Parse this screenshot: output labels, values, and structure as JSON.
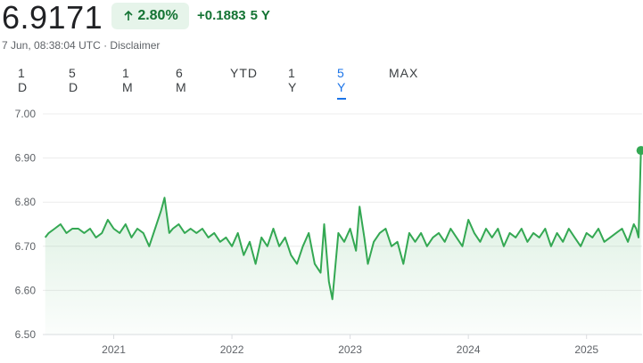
{
  "header": {
    "price": "6.9171",
    "change_pct": "2.80%",
    "change_abs": "+0.1883",
    "change_period": "5 Y",
    "timestamp": "7 Jun, 08:38:04 UTC",
    "separator": "·",
    "disclaimer": "Disclaimer"
  },
  "ranges": [
    {
      "label": "1 D",
      "active": false
    },
    {
      "label": "5 D",
      "active": false
    },
    {
      "label": "1 M",
      "active": false
    },
    {
      "label": "6 M",
      "active": false
    },
    {
      "label": "YTD",
      "active": false
    },
    {
      "label": "1 Y",
      "active": false
    },
    {
      "label": "5 Y",
      "active": true
    },
    {
      "label": "MAX",
      "active": false
    }
  ],
  "colors": {
    "positive": "#137333",
    "line": "#34a853",
    "active_tab": "#1a73e8"
  },
  "icons": {
    "change_arrow": "arrow-up-icon"
  },
  "chart_data": {
    "type": "area",
    "ylim": [
      6.5,
      7.0
    ],
    "yticks": [
      "7.00",
      "6.90",
      "6.80",
      "6.70",
      "6.60",
      "6.50"
    ],
    "ytick_values": [
      7.0,
      6.9,
      6.8,
      6.7,
      6.6,
      6.5
    ],
    "xtick_labels": [
      "2021",
      "2022",
      "2023",
      "2024",
      "2025"
    ],
    "xtick_values": [
      2021.0,
      2022.0,
      2023.0,
      2024.0,
      2025.0
    ],
    "xlim": [
      2020.4,
      2025.47
    ],
    "grid": true,
    "series": [
      {
        "x": [
          2020.42,
          2020.45,
          2020.5,
          2020.55,
          2020.6,
          2020.65,
          2020.7,
          2020.75,
          2020.8,
          2020.85,
          2020.9,
          2020.95,
          2021.0,
          2021.05,
          2021.1,
          2021.15,
          2021.2,
          2021.25,
          2021.3,
          2021.35,
          2021.4,
          2021.43,
          2021.47,
          2021.5,
          2021.55,
          2021.6,
          2021.65,
          2021.7,
          2021.75,
          2021.8,
          2021.85,
          2021.9,
          2021.95,
          2022.0,
          2022.05,
          2022.1,
          2022.15,
          2022.2,
          2022.25,
          2022.3,
          2022.35,
          2022.4,
          2022.45,
          2022.5,
          2022.55,
          2022.6,
          2022.65,
          2022.7,
          2022.75,
          2022.78,
          2022.82,
          2022.85,
          2022.9,
          2022.95,
          2023.0,
          2023.05,
          2023.08,
          2023.12,
          2023.15,
          2023.2,
          2023.25,
          2023.3,
          2023.35,
          2023.4,
          2023.45,
          2023.5,
          2023.55,
          2023.6,
          2023.65,
          2023.7,
          2023.75,
          2023.8,
          2023.85,
          2023.9,
          2023.95,
          2024.0,
          2024.05,
          2024.1,
          2024.15,
          2024.2,
          2024.25,
          2024.3,
          2024.35,
          2024.4,
          2024.45,
          2024.5,
          2024.55,
          2024.6,
          2024.65,
          2024.7,
          2024.75,
          2024.8,
          2024.85,
          2024.9,
          2024.95,
          2025.0,
          2025.05,
          2025.1,
          2025.15,
          2025.2,
          2025.25,
          2025.3,
          2025.35,
          2025.4,
          2025.42,
          2025.44,
          2025.46
        ],
        "values": [
          6.72,
          6.73,
          6.74,
          6.75,
          6.73,
          6.74,
          6.74,
          6.73,
          6.74,
          6.72,
          6.73,
          6.76,
          6.74,
          6.73,
          6.75,
          6.72,
          6.74,
          6.73,
          6.7,
          6.74,
          6.78,
          6.81,
          6.73,
          6.74,
          6.75,
          6.73,
          6.74,
          6.73,
          6.74,
          6.72,
          6.73,
          6.71,
          6.72,
          6.7,
          6.73,
          6.68,
          6.71,
          6.66,
          6.72,
          6.7,
          6.74,
          6.7,
          6.72,
          6.68,
          6.66,
          6.7,
          6.73,
          6.66,
          6.64,
          6.75,
          6.62,
          6.58,
          6.73,
          6.71,
          6.74,
          6.69,
          6.79,
          6.72,
          6.66,
          6.71,
          6.73,
          6.74,
          6.7,
          6.71,
          6.66,
          6.73,
          6.71,
          6.73,
          6.7,
          6.72,
          6.73,
          6.71,
          6.74,
          6.72,
          6.7,
          6.76,
          6.73,
          6.71,
          6.74,
          6.72,
          6.74,
          6.7,
          6.73,
          6.72,
          6.74,
          6.71,
          6.73,
          6.72,
          6.74,
          6.7,
          6.73,
          6.71,
          6.74,
          6.72,
          6.7,
          6.73,
          6.72,
          6.74,
          6.71,
          6.72,
          6.73,
          6.74,
          6.71,
          6.75,
          6.74,
          6.72,
          6.9171
        ]
      }
    ]
  }
}
